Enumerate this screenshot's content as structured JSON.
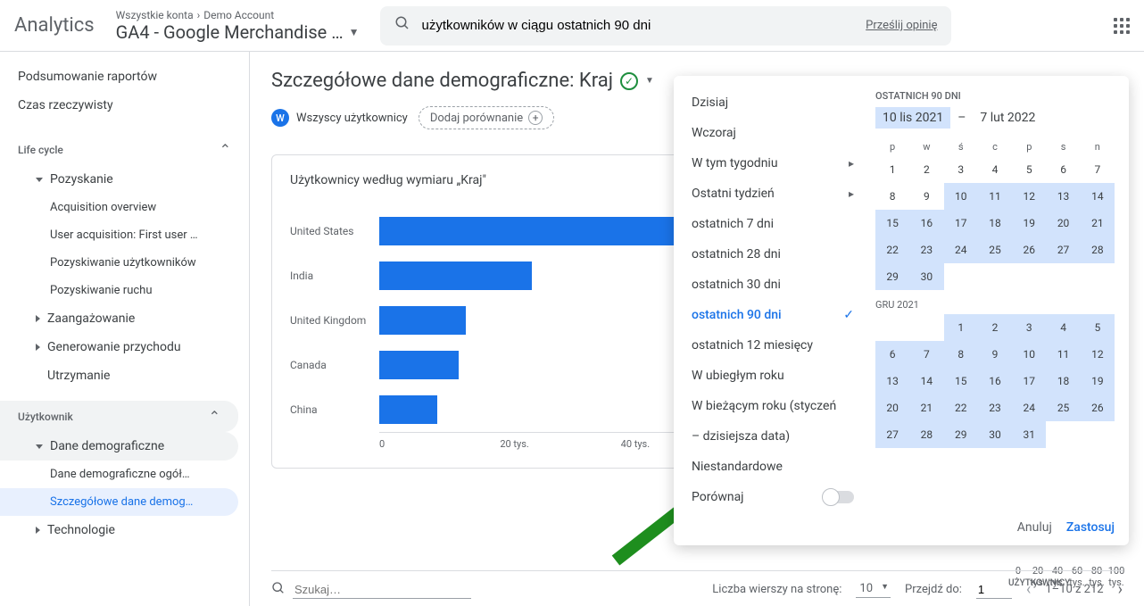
{
  "header": {
    "logo": "Analytics",
    "account_path": {
      "parent": "Wszystkie konta",
      "child": "Demo Account"
    },
    "property": "GA4 - Google Merchandise …",
    "search_value": "użytkowników w ciągu ostatnich 90 dni",
    "feedback": "Prześlij opinię"
  },
  "sidebar": {
    "top": [
      "Podsumowanie raportów",
      "Czas rzeczywisty"
    ],
    "lifecycle_label": "Life cycle",
    "acquisition": {
      "label": "Pozyskanie",
      "items": [
        "Acquisition overview",
        "User acquisition: First user …",
        "Pozyskiwanie użytkowników",
        "Pozyskiwanie ruchu"
      ]
    },
    "engagement": "Zaangażowanie",
    "monetization": "Generowanie przychodu",
    "retention": "Utrzymanie",
    "user_label": "Użytkownik",
    "demographics": {
      "label": "Dane demograficzne",
      "items": [
        "Dane demograficzne ogół…",
        "Szczegółowe dane demog…"
      ]
    },
    "tech": "Technologie"
  },
  "main": {
    "title": "Szczegółowe dane demograficzne: Kraj",
    "segment": "Wszyscy użytkownicy",
    "add_compare": "Dodaj porównanie",
    "card_title": "Użytkownicy według wymiaru „Kraj\"",
    "chart": {
      "type": "bar",
      "categories": [
        "United States",
        "India",
        "United Kingdom",
        "Canada",
        "China"
      ],
      "values": [
        100000,
        21000,
        12000,
        11000,
        8000
      ],
      "bar_color": "#1a73e8",
      "x_max": 100000,
      "x_ticks": [
        "0",
        "20 tys.",
        "40 tys.",
        "60 tys.",
        "80 tys.",
        "100 tys."
      ]
    },
    "second_axis": {
      "label": "UŻYTKOWNICY",
      "ticks": [
        "0",
        "20 tys.",
        "40 tys.",
        "60 tys.",
        "80 tys.",
        "100 tys."
      ]
    },
    "footer": {
      "search_placeholder": "Szukaj…",
      "rows_label": "Liczba wierszy na stronę:",
      "rows_value": "10",
      "goto_label": "Przejdź do:",
      "goto_value": "1",
      "range": "1–10 z 212"
    }
  },
  "popup": {
    "presets": [
      {
        "label": "Dzisiaj"
      },
      {
        "label": "Wczoraj"
      },
      {
        "label": "W tym tygodniu",
        "submenu": true
      },
      {
        "label": "Ostatni tydzień",
        "submenu": true
      },
      {
        "label": "ostatnich 7 dni"
      },
      {
        "label": "ostatnich 28 dni"
      },
      {
        "label": "ostatnich 30 dni"
      },
      {
        "label": "ostatnich 90 dni",
        "selected": true
      },
      {
        "label": "ostatnich 12 miesięcy"
      },
      {
        "label": "W ubiegłym roku"
      },
      {
        "label": "W bieżącym roku (styczeń"
      },
      {
        "label": "– dzisiejsza data)"
      },
      {
        "label": "Niestandardowe"
      }
    ],
    "compare_label": "Porównaj",
    "range_label": "OSTATNICH 90 DNI",
    "start_date": "10 lis 2021",
    "end_date": "7 lut 2022",
    "sep": "–",
    "dow": [
      "p",
      "w",
      "ś",
      "c",
      "p",
      "s",
      "n"
    ],
    "month1": {
      "days": [
        1,
        2,
        3,
        4,
        5,
        6,
        7,
        8,
        9,
        10,
        11,
        12,
        13,
        14,
        15,
        16,
        17,
        18,
        19,
        20,
        21,
        22,
        23,
        24,
        25,
        26,
        27,
        28,
        29,
        30
      ],
      "first_sel": 10
    },
    "month2": {
      "label": "GRU 2021",
      "lead_empty": 2,
      "days": [
        1,
        2,
        3,
        4,
        5,
        6,
        7,
        8,
        9,
        10,
        11,
        12,
        13,
        14,
        15,
        16,
        17,
        18,
        19,
        20,
        21,
        22,
        23,
        24,
        25,
        26,
        27,
        28,
        29,
        30,
        31
      ]
    },
    "cancel": "Anuluj",
    "apply": "Zastosuj"
  },
  "arrow_color": "#1e8e1e"
}
